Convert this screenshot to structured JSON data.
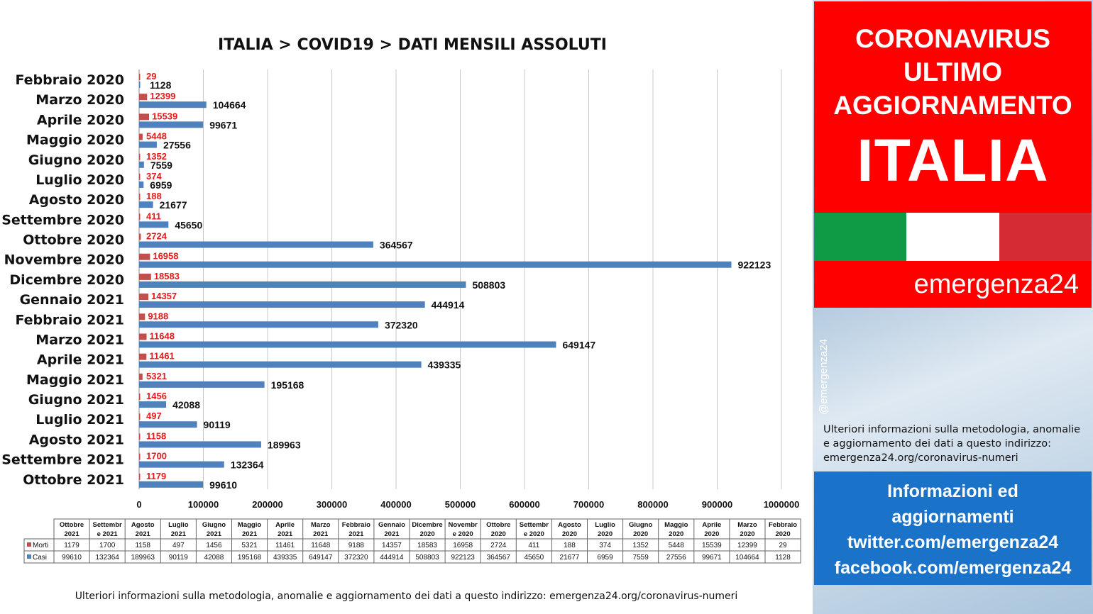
{
  "chart_data": {
    "type": "bar",
    "orientation": "horizontal",
    "title": "ITALIA >  COVID19 > DATI MENSILI  ASSOLUTI",
    "categories": [
      "Febbraio 2020",
      "Marzo 2020",
      "Aprile 2020",
      "Maggio 2020",
      "Giugno 2020",
      "Luglio 2020",
      "Agosto 2020",
      "Settembre 2020",
      "Ottobre 2020",
      "Novembre 2020",
      "Dicembre 2020",
      "Gennaio 2021",
      "Febbraio 2021",
      "Marzo 2021",
      "Aprile 2021",
      "Maggio 2021",
      "Giugno 2021",
      "Luglio 2021",
      "Agosto 2021",
      "Settembre 2021",
      "Ottobre 2021"
    ],
    "series": [
      {
        "name": "Morti",
        "color": "#c0504d",
        "label_color": "#e31b1b",
        "values": [
          29,
          12399,
          15539,
          5448,
          1352,
          374,
          188,
          411,
          2724,
          16958,
          18583,
          14357,
          9188,
          11648,
          11461,
          5321,
          1456,
          497,
          1158,
          1700,
          1179
        ]
      },
      {
        "name": "Casi",
        "color": "#4f81bd",
        "label_color": "#111111",
        "values": [
          1128,
          104664,
          99671,
          27556,
          7559,
          6959,
          21677,
          45650,
          364567,
          922123,
          508803,
          444914,
          372320,
          649147,
          439335,
          195168,
          42088,
          90119,
          189963,
          132364,
          99610
        ]
      }
    ],
    "xlim": [
      0,
      1000000
    ],
    "xticks": [
      "0",
      "100000",
      "200000",
      "300000",
      "400000",
      "500000",
      "600000",
      "700000",
      "800000",
      "900000",
      "1000000"
    ],
    "grid": true,
    "table_headers": [
      [
        "Ottobre",
        "2021"
      ],
      [
        "Settembr",
        "e 2021"
      ],
      [
        "Agosto",
        "2021"
      ],
      [
        "Luglio",
        "2021"
      ],
      [
        "Giugno",
        "2021"
      ],
      [
        "Maggio",
        "2021"
      ],
      [
        "Aprile",
        "2021"
      ],
      [
        "Marzo",
        "2021"
      ],
      [
        "Febbraio",
        "2021"
      ],
      [
        "Gennaio",
        "2021"
      ],
      [
        "Dicembre",
        "2020"
      ],
      [
        "Novembr",
        "e 2020"
      ],
      [
        "Ottobre",
        "2020"
      ],
      [
        "Settembr",
        "e 2020"
      ],
      [
        "Agosto",
        "2020"
      ],
      [
        "Luglio",
        "2020"
      ],
      [
        "Giugno",
        "2020"
      ],
      [
        "Maggio",
        "2020"
      ],
      [
        "Aprile",
        "2020"
      ],
      [
        "Marzo",
        "2020"
      ],
      [
        "Febbraio",
        "2020"
      ]
    ]
  },
  "footnote": "Ulteriori informazioni sulla metodologia, anomalie e aggiornamento dei dati a questo indirizzo: emergenza24.org/coronavirus-numeri",
  "sidebar": {
    "headline": [
      "CORONAVIRUS",
      "ULTIMO",
      "AGGIORNAMENTO"
    ],
    "country": "ITALIA",
    "flag_colors": [
      "#0f9a45",
      "#ffffff",
      "#d42b34"
    ],
    "brand": "emergenza24",
    "handle": "@emergenza24",
    "info": "Ulteriori informazioni sulla metodologia, anomalie e aggiornamento dei dati a questo indirizzo: emergenza24.org/coronavirus-numeri",
    "links": [
      "Informazioni ed",
      "aggiornamenti",
      "twitter.com/emergenza24",
      "facebook.com/emergenza24"
    ]
  }
}
